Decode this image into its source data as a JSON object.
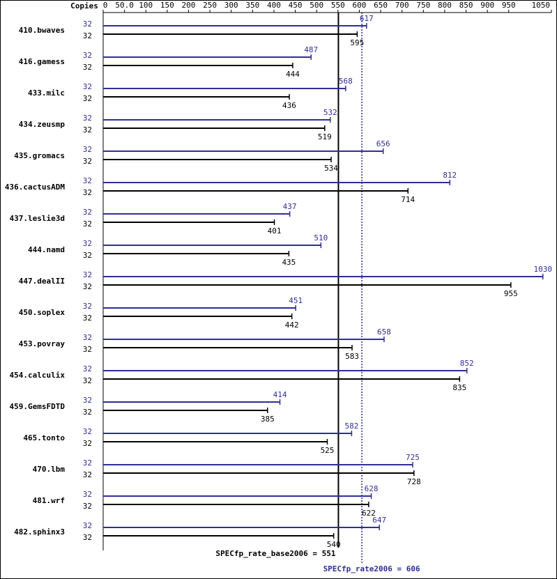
{
  "chart_data": {
    "type": "bar",
    "orientation": "horizontal",
    "copies_label": "Copies",
    "categories": [
      "410.bwaves",
      "416.gamess",
      "433.milc",
      "434.zeusmp",
      "435.gromacs",
      "436.cactusADM",
      "437.leslie3d",
      "444.namd",
      "447.dealII",
      "450.soplex",
      "453.povray",
      "454.calculix",
      "459.GemsFDTD",
      "465.tonto",
      "470.lbm",
      "481.wrf",
      "482.sphinx3"
    ],
    "series": [
      {
        "color": "#2e2e96",
        "copies": [
          32,
          32,
          32,
          32,
          32,
          32,
          32,
          32,
          32,
          32,
          32,
          32,
          32,
          32,
          32,
          32,
          32
        ],
        "values": [
          617,
          487,
          568,
          532,
          656,
          812,
          437,
          510,
          1030,
          451,
          658,
          852,
          414,
          582,
          725,
          628,
          647
        ]
      },
      {
        "color": "#000000",
        "copies": [
          32,
          32,
          32,
          32,
          32,
          32,
          32,
          32,
          32,
          32,
          32,
          32,
          32,
          32,
          32,
          32,
          32
        ],
        "values": [
          595,
          444,
          436,
          519,
          534,
          714,
          401,
          435,
          955,
          442,
          583,
          835,
          385,
          525,
          728,
          622,
          540
        ]
      }
    ],
    "xlim": [
      0,
      1050
    ],
    "xticks": [
      0,
      {
        "value": 50,
        "label": "50.0"
      },
      100,
      150,
      200,
      250,
      300,
      350,
      400,
      450,
      500,
      550,
      600,
      650,
      700,
      750,
      800,
      850,
      900,
      950,
      1050
    ],
    "reference_lines": [
      {
        "label": "SPECfp_rate_base2006 = 551",
        "value": 551,
        "color": "#000000",
        "style": "solid"
      },
      {
        "label": "SPECfp_rate2006 = 606",
        "value": 606,
        "color": "#2e2e96",
        "style": "dotted"
      }
    ]
  }
}
